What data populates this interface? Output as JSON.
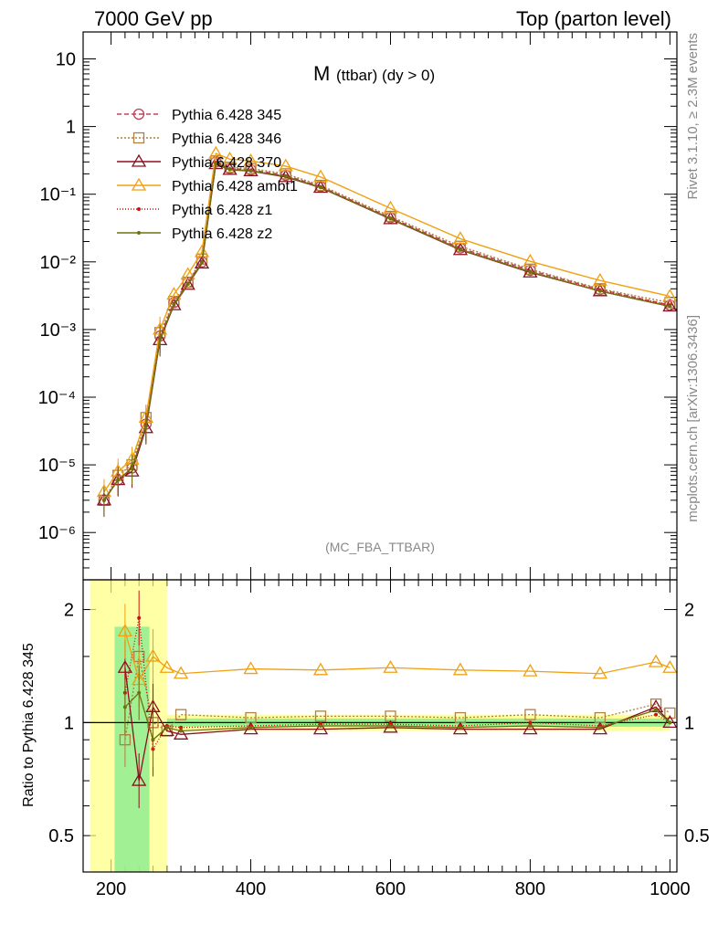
{
  "header": {
    "left": "7000 GeV pp",
    "right": "Top (parton level)"
  },
  "plot_title": {
    "main": "M",
    "sub": "(ttbar) (dy > 0)"
  },
  "analysis_tag": "(MC_FBA_TTBAR)",
  "side_labels": {
    "rivet": "Rivet 3.1.10, ≥ 2.3M events",
    "source": "mcplots.cern.ch [arXiv:1306.3436]"
  },
  "colors": {
    "s345": "#c0405a",
    "s346": "#b08040",
    "s370": "#8b1020",
    "ambt1": "#f0a010",
    "z1": "#d01010",
    "z2": "#707010",
    "band_yellow": "#ffff80",
    "band_green": "#90ee90"
  },
  "chart_data": [
    {
      "type": "line",
      "panel": "main",
      "title": "M (ttbar) (dy > 0)",
      "xlim": [
        160,
        1010
      ],
      "ylim": [
        2e-07,
        25
      ],
      "yscale": "log",
      "ytick_labels": [
        "10",
        "1",
        "10⁻¹",
        "10⁻²",
        "10⁻³",
        "10⁻⁴",
        "10⁻⁵",
        "10⁻⁶"
      ],
      "legend_position": "top-left",
      "series": [
        {
          "name": "Pythia 6.428 345",
          "key": "s345",
          "marker": "circle",
          "dash": "5,3",
          "x": [
            190,
            210,
            230,
            250,
            270,
            290,
            310,
            330,
            350,
            370,
            400,
            450,
            500,
            600,
            700,
            800,
            900,
            1000
          ],
          "y": [
            3e-06,
            6e-06,
            9e-06,
            4e-05,
            0.0008,
            0.0025,
            0.005,
            0.01,
            0.3,
            0.24,
            0.23,
            0.19,
            0.13,
            0.045,
            0.016,
            0.0075,
            0.0039,
            0.0023
          ]
        },
        {
          "name": "Pythia 6.428 346",
          "key": "s346",
          "marker": "square",
          "dash": "2,2",
          "x": [
            190,
            210,
            230,
            250,
            270,
            290,
            310,
            330,
            350,
            370,
            400,
            450,
            500,
            600,
            700,
            800,
            900,
            1000
          ],
          "y": [
            3e-06,
            7e-06,
            1e-05,
            5e-05,
            0.0009,
            0.0026,
            0.005,
            0.011,
            0.31,
            0.25,
            0.24,
            0.2,
            0.135,
            0.047,
            0.017,
            0.0078,
            0.004,
            0.0025
          ]
        },
        {
          "name": "Pythia 6.428 370",
          "key": "s370",
          "marker": "triangle",
          "dash": "",
          "x": [
            190,
            210,
            230,
            250,
            270,
            290,
            310,
            330,
            350,
            370,
            400,
            450,
            500,
            600,
            700,
            800,
            900,
            1000
          ],
          "y": [
            3e-06,
            6e-06,
            8e-06,
            3.5e-05,
            0.0007,
            0.0023,
            0.0046,
            0.0095,
            0.28,
            0.23,
            0.22,
            0.18,
            0.125,
            0.043,
            0.015,
            0.007,
            0.0037,
            0.0022
          ]
        },
        {
          "name": "Pythia 6.428 ambt1",
          "key": "ambt1",
          "marker": "triangle",
          "dash": "",
          "x": [
            190,
            210,
            230,
            250,
            270,
            290,
            310,
            330,
            350,
            370,
            400,
            450,
            500,
            600,
            700,
            800,
            900,
            1000
          ],
          "y": [
            4e-06,
            8e-06,
            1.2e-05,
            5e-05,
            0.001,
            0.0033,
            0.0065,
            0.014,
            0.4,
            0.33,
            0.31,
            0.26,
            0.18,
            0.062,
            0.022,
            0.0102,
            0.0053,
            0.0031
          ]
        },
        {
          "name": "Pythia 6.428 z1",
          "key": "z1",
          "marker": "dot",
          "dash": "1,2",
          "x": [
            190,
            210,
            230,
            250,
            270,
            290,
            310,
            330,
            350,
            370,
            400,
            450,
            500,
            600,
            700,
            800,
            900,
            1000
          ],
          "y": [
            3e-06,
            6e-06,
            9e-06,
            3.8e-05,
            0.00075,
            0.0024,
            0.0048,
            0.01,
            0.29,
            0.235,
            0.225,
            0.185,
            0.128,
            0.044,
            0.0155,
            0.0072,
            0.0038,
            0.0023
          ]
        },
        {
          "name": "Pythia 6.428 z2",
          "key": "z2",
          "marker": "dot",
          "dash": "",
          "x": [
            190,
            210,
            230,
            250,
            270,
            290,
            310,
            330,
            350,
            370,
            400,
            450,
            500,
            600,
            700,
            800,
            900,
            1000
          ],
          "y": [
            3e-06,
            6e-06,
            9e-06,
            3.7e-05,
            0.00073,
            0.00235,
            0.0047,
            0.0098,
            0.285,
            0.232,
            0.222,
            0.183,
            0.126,
            0.0435,
            0.0152,
            0.0071,
            0.0037,
            0.0022
          ]
        }
      ]
    },
    {
      "type": "line",
      "panel": "ratio",
      "ylabel": "Ratio to Pythia 6.428 345",
      "xlim": [
        160,
        1010
      ],
      "ylim": [
        0.4,
        2.4
      ],
      "yscale": "log",
      "xtick_labels": [
        "200",
        "400",
        "600",
        "800",
        "1000"
      ],
      "ytick_labels": [
        "2",
        "1",
        "0.5"
      ],
      "series": [
        {
          "name": "Pythia 6.428 345",
          "key": "s345",
          "x": [
            180,
            1000
          ],
          "y": [
            1.0,
            1.0
          ]
        },
        {
          "name": "Pythia 6.428 346",
          "key": "s346",
          "x": [
            220,
            240,
            260,
            280,
            300,
            400,
            500,
            600,
            700,
            800,
            900,
            980,
            1000
          ],
          "y": [
            0.9,
            1.5,
            1.0,
            0.95,
            1.05,
            1.03,
            1.04,
            1.04,
            1.03,
            1.05,
            1.03,
            1.12,
            1.06
          ]
        },
        {
          "name": "Pythia 6.428 370",
          "key": "s370",
          "x": [
            220,
            240,
            260,
            280,
            300,
            400,
            500,
            600,
            700,
            800,
            900,
            980,
            1000
          ],
          "y": [
            1.4,
            0.7,
            1.1,
            0.95,
            0.93,
            0.96,
            0.96,
            0.97,
            0.96,
            0.96,
            0.96,
            1.1,
            1.0
          ]
        },
        {
          "name": "Pythia 6.428 ambt1",
          "key": "ambt1",
          "x": [
            220,
            240,
            260,
            280,
            300,
            400,
            500,
            600,
            700,
            800,
            900,
            980,
            1000
          ],
          "y": [
            1.75,
            1.3,
            1.5,
            1.4,
            1.35,
            1.39,
            1.38,
            1.4,
            1.38,
            1.37,
            1.35,
            1.45,
            1.4
          ]
        },
        {
          "name": "Pythia 6.428 z1",
          "key": "z1",
          "x": [
            220,
            240,
            260,
            280,
            300,
            400,
            500,
            600,
            700,
            800,
            900,
            980,
            1000
          ],
          "y": [
            1.2,
            1.9,
            0.85,
            0.98,
            0.97,
            0.98,
            0.99,
            0.99,
            0.98,
            1.0,
            0.98,
            1.05,
            1.0
          ]
        },
        {
          "name": "Pythia 6.428 z2",
          "key": "z2",
          "x": [
            220,
            240,
            260,
            280,
            300,
            400,
            500,
            600,
            700,
            800,
            900,
            980,
            1000
          ],
          "y": [
            1.1,
            1.2,
            0.9,
            0.97,
            0.95,
            0.97,
            0.98,
            0.98,
            0.97,
            0.98,
            0.97,
            1.08,
            1.0
          ]
        }
      ]
    }
  ]
}
